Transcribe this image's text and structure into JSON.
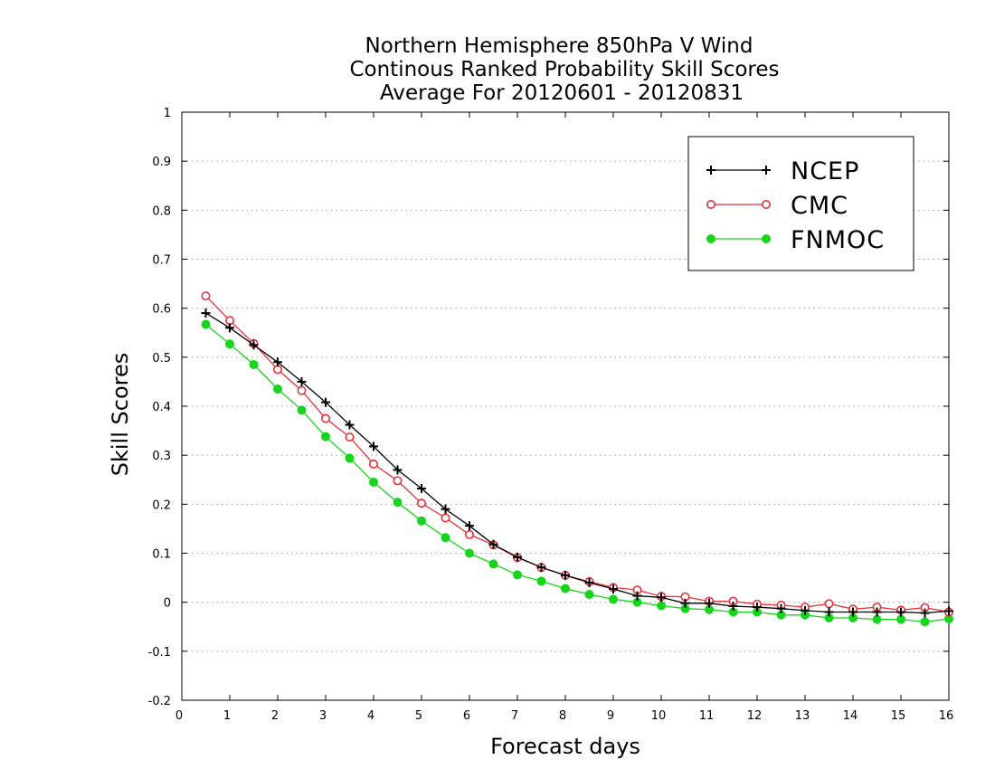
{
  "chart_data": {
    "type": "line",
    "title": [
      "Northern Hemisphere 850hPa V Wind",
      "Continous Ranked Probability Skill Scores",
      "Average For 20120601 - 20120831"
    ],
    "xlabel": "Forecast days",
    "ylabel": "Skill Scores",
    "xlim": [
      0,
      16
    ],
    "ylim": [
      -0.2,
      1
    ],
    "xticks": [
      "0",
      "1",
      "2",
      "3",
      "4",
      "5",
      "6",
      "7",
      "8",
      "9",
      "10",
      "11",
      "12",
      "13",
      "14",
      "15",
      "16"
    ],
    "yticks": [
      "-0.2",
      "-0.1",
      "0",
      "0.1",
      "0.2",
      "0.3",
      "0.4",
      "0.5",
      "0.6",
      "0.7",
      "0.8",
      "0.9",
      "1"
    ],
    "grid": "horizontal-dotted",
    "legend_position": "top-right",
    "x": [
      0.5,
      1,
      1.5,
      2,
      2.5,
      3,
      3.5,
      4,
      4.5,
      5,
      5.5,
      6,
      6.5,
      7,
      7.5,
      8,
      8.5,
      9,
      9.5,
      10,
      10.5,
      11,
      11.5,
      12,
      12.5,
      13,
      13.5,
      14,
      14.5,
      15,
      15.5,
      16
    ],
    "series": [
      {
        "name": "NCEP",
        "color": "#000000",
        "marker": "plus",
        "values": [
          0.59,
          0.56,
          0.525,
          0.49,
          0.45,
          0.408,
          0.362,
          0.318,
          0.27,
          0.232,
          0.19,
          0.156,
          0.118,
          0.092,
          0.071,
          0.055,
          0.04,
          0.027,
          0.013,
          0.01,
          -0.002,
          -0.002,
          -0.008,
          -0.01,
          -0.013,
          -0.017,
          -0.02,
          -0.02,
          -0.02,
          -0.02,
          -0.022,
          -0.018
        ]
      },
      {
        "name": "CMC",
        "color": "#e8303a",
        "marker": "open-circle",
        "values": [
          0.625,
          0.575,
          0.528,
          0.475,
          0.432,
          0.375,
          0.337,
          0.282,
          0.248,
          0.202,
          0.172,
          0.138,
          0.117,
          0.091,
          0.071,
          0.055,
          0.042,
          0.03,
          0.025,
          0.012,
          0.011,
          0.002,
          0.002,
          -0.004,
          -0.006,
          -0.01,
          -0.003,
          -0.014,
          -0.01,
          -0.016,
          -0.011,
          -0.02
        ]
      },
      {
        "name": "FNMOC",
        "color": "#17d41c",
        "marker": "filled-circle",
        "values": [
          0.567,
          0.527,
          0.485,
          0.435,
          0.392,
          0.338,
          0.294,
          0.245,
          0.204,
          0.166,
          0.132,
          0.1,
          0.078,
          0.056,
          0.043,
          0.028,
          0.016,
          0.006,
          0.0,
          -0.007,
          -0.013,
          -0.015,
          -0.02,
          -0.02,
          -0.026,
          -0.026,
          -0.032,
          -0.032,
          -0.035,
          -0.035,
          -0.04,
          -0.034
        ]
      }
    ]
  }
}
